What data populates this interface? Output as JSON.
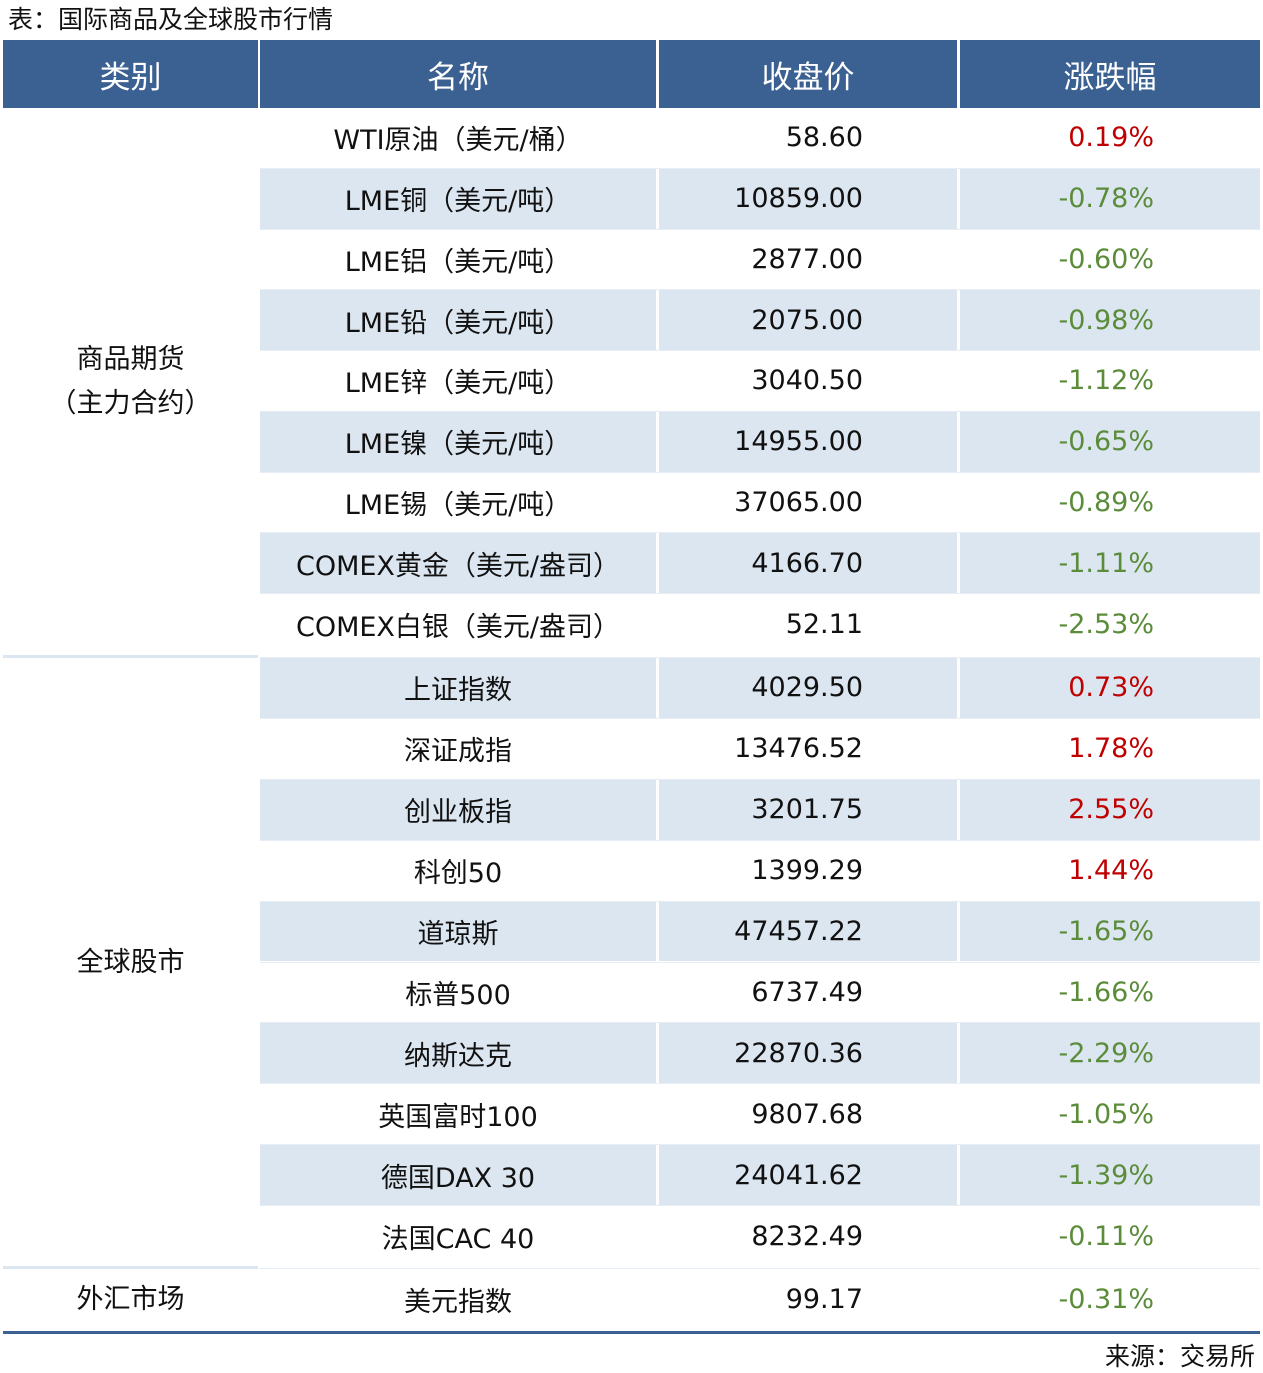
{
  "title": "表：国际商品及全球股市行情",
  "table": {
    "header": [
      "类别",
      "名称",
      "收盘价",
      "涨跌幅"
    ],
    "up_color": "#c00000",
    "down_color": "#5b8c3a",
    "groups": [
      {
        "category": "商品期货\n（主力合约）",
        "rows": [
          {
            "name": "WTI原油（美元/桶）",
            "price": "58.60",
            "change": "0.19%"
          },
          {
            "name": "LME铜（美元/吨）",
            "price": "10859.00",
            "change": "-0.78%"
          },
          {
            "name": "LME铝（美元/吨）",
            "price": "2877.00",
            "change": "-0.60%"
          },
          {
            "name": "LME铅（美元/吨）",
            "price": "2075.00",
            "change": "-0.98%"
          },
          {
            "name": "LME锌（美元/吨）",
            "price": "3040.50",
            "change": "-1.12%"
          },
          {
            "name": "LME镍（美元/吨）",
            "price": "14955.00",
            "change": "-0.65%"
          },
          {
            "name": "LME锡（美元/吨）",
            "price": "37065.00",
            "change": "-0.89%"
          },
          {
            "name": "COMEX黄金（美元/盎司）",
            "price": "4166.70",
            "change": "-1.11%"
          },
          {
            "name": "COMEX白银（美元/盎司）",
            "price": "52.11",
            "change": "-2.53%"
          }
        ]
      },
      {
        "category": "全球股市",
        "rows": [
          {
            "name": "上证指数",
            "price": "4029.50",
            "change": "0.73%"
          },
          {
            "name": "深证成指",
            "price": "13476.52",
            "change": "1.78%"
          },
          {
            "name": "创业板指",
            "price": "3201.75",
            "change": "2.55%"
          },
          {
            "name": "科创50",
            "price": "1399.29",
            "change": "1.44%"
          },
          {
            "name": "道琼斯",
            "price": "47457.22",
            "change": "-1.65%"
          },
          {
            "name": "标普500",
            "price": "6737.49",
            "change": "-1.66%"
          },
          {
            "name": "纳斯达克",
            "price": "22870.36",
            "change": "-2.29%"
          },
          {
            "name": "英国富时100",
            "price": "9807.68",
            "change": "-1.05%"
          },
          {
            "name": "德国DAX 30",
            "price": "24041.62",
            "change": "-1.39%"
          },
          {
            "name": "法国CAC 40",
            "price": "8232.49",
            "change": "-0.11%"
          }
        ]
      },
      {
        "category": "外汇市场",
        "rows": [
          {
            "name": "美元指数",
            "price": "99.17",
            "change": "-0.31%"
          }
        ]
      }
    ]
  },
  "source": "来源：交易所"
}
